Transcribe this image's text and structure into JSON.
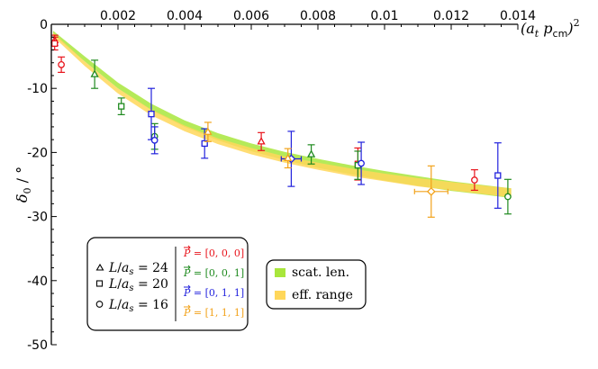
{
  "chart_data": {
    "type": "scatter",
    "title": "",
    "xlabel": "(a_t p_cm)^2",
    "ylabel": "δ0 / °",
    "xlim": [
      0,
      0.014
    ],
    "ylim": [
      -50,
      0
    ],
    "x_ticks": [
      0.002,
      0.004,
      0.006,
      0.008,
      0.01,
      0.012,
      0.014
    ],
    "x_tick_labels": [
      "0.002",
      "0.004",
      "0.006",
      "0.008",
      "0.01",
      "0.012",
      "0.014"
    ],
    "y_ticks": [
      0,
      -10,
      -20,
      -30,
      -40,
      -50
    ],
    "y_tick_labels": [
      "0",
      "-10",
      "-20",
      "-30",
      "-40",
      "-50"
    ],
    "x_axis_position": "top",
    "grid": false,
    "colors": {
      "frame_000": "#e8141c",
      "frame_001": "#1f8a1f",
      "frame_011": "#2222dd",
      "frame_111": "#f2a21a",
      "band_scat": "#a8e63c",
      "band_eff": "#ffd75a"
    },
    "bands": [
      {
        "name": "scat. len.",
        "x": [
          5e-05,
          0.001,
          0.002,
          0.003,
          0.004,
          0.005,
          0.006,
          0.007,
          0.008,
          0.009,
          0.01,
          0.011,
          0.012,
          0.013,
          0.0138
        ],
        "upper": [
          -1.0,
          -5.0,
          -9.1,
          -12.4,
          -15.0,
          -17.0,
          -18.6,
          -19.9,
          -21.0,
          -22.0,
          -22.9,
          -23.7,
          -24.5,
          -25.1,
          -25.6
        ],
        "lower": [
          -1.6,
          -5.8,
          -10.0,
          -13.4,
          -16.0,
          -18.1,
          -19.8,
          -21.2,
          -22.4,
          -23.4,
          -24.4,
          -25.2,
          -26.0,
          -26.6,
          -27.1
        ]
      },
      {
        "name": "eff. range",
        "x": [
          5e-05,
          0.001,
          0.002,
          0.003,
          0.004,
          0.005,
          0.006,
          0.007,
          0.008,
          0.009,
          0.01,
          0.011,
          0.012,
          0.013,
          0.0138
        ],
        "upper": [
          -1.3,
          -5.8,
          -10.0,
          -13.3,
          -15.8,
          -17.8,
          -19.3,
          -20.6,
          -21.6,
          -22.5,
          -23.3,
          -24.0,
          -24.6,
          -25.2,
          -25.6
        ],
        "lower": [
          -1.9,
          -6.5,
          -10.8,
          -14.2,
          -16.7,
          -18.7,
          -20.3,
          -21.6,
          -22.7,
          -23.7,
          -24.5,
          -25.3,
          -25.9,
          -26.5,
          -27.0
        ]
      }
    ],
    "series": [
      {
        "frame": "000",
        "marker": "triangle",
        "x": 0.0001,
        "y": -2.5,
        "yerr": 0.8,
        "xerr": 0
      },
      {
        "frame": "000",
        "marker": "square",
        "x": 0.0001,
        "y": -3.0,
        "yerr": 1.0,
        "xerr": 0
      },
      {
        "frame": "000",
        "marker": "circle",
        "x": 0.0003,
        "y": -6.3,
        "yerr": 1.2,
        "xerr": 0
      },
      {
        "frame": "000",
        "marker": "triangle",
        "x": 0.0063,
        "y": -18.3,
        "yerr": 1.4,
        "xerr": 0
      },
      {
        "frame": "000",
        "marker": "square",
        "x": 0.0092,
        "y": -21.8,
        "yerr": 2.5,
        "xerr": 0
      },
      {
        "frame": "000",
        "marker": "circle",
        "x": 0.0127,
        "y": -24.3,
        "yerr": 1.6,
        "xerr": 0
      },
      {
        "frame": "001",
        "marker": "triangle",
        "x": 0.0013,
        "y": -7.8,
        "yerr": 2.2,
        "xerr": 0
      },
      {
        "frame": "001",
        "marker": "square",
        "x": 0.0021,
        "y": -12.8,
        "yerr": 1.3,
        "xerr": 0
      },
      {
        "frame": "001",
        "marker": "circle",
        "x": 0.0031,
        "y": -17.5,
        "yerr": 2.0,
        "xerr": 0
      },
      {
        "frame": "001",
        "marker": "triangle",
        "x": 0.0078,
        "y": -20.3,
        "yerr": 1.5,
        "xerr": 0
      },
      {
        "frame": "001",
        "marker": "square",
        "x": 0.0092,
        "y": -22.0,
        "yerr": 2.2,
        "xerr": 0
      },
      {
        "frame": "001",
        "marker": "circle",
        "x": 0.0137,
        "y": -26.9,
        "yerr": 2.7,
        "xerr": 0
      },
      {
        "frame": "011",
        "marker": "square",
        "x": 0.003,
        "y": -14.0,
        "yerr": 4.0,
        "xerr": 0
      },
      {
        "frame": "011",
        "marker": "circle",
        "x": 0.0031,
        "y": -18.1,
        "yerr": 2.1,
        "xerr": 0
      },
      {
        "frame": "011",
        "marker": "square",
        "x": 0.0046,
        "y": -18.6,
        "yerr": 2.3,
        "xerr": 0
      },
      {
        "frame": "011",
        "marker": "diamond",
        "x": 0.0072,
        "y": -21.0,
        "yerr": 4.3,
        "xerr": 0.0003
      },
      {
        "frame": "011",
        "marker": "circle",
        "x": 0.0093,
        "y": -21.7,
        "yerr": 3.3,
        "xerr": 0
      },
      {
        "frame": "011",
        "marker": "square",
        "x": 0.0134,
        "y": -23.6,
        "yerr": 5.1,
        "xerr": 0
      },
      {
        "frame": "111",
        "marker": "triangle",
        "x": 0.0047,
        "y": -16.8,
        "yerr": 1.5,
        "xerr": 0
      },
      {
        "frame": "111",
        "marker": "triangle",
        "x": 0.0071,
        "y": -20.9,
        "yerr": 1.5,
        "xerr": 0
      },
      {
        "frame": "111",
        "marker": "diamond",
        "x": 0.0114,
        "y": -26.1,
        "yerr": 4.0,
        "xerr": 0.0005
      }
    ]
  },
  "legend_markers": {
    "entries": [
      {
        "marker": "triangle",
        "label": "L/a_s = 24"
      },
      {
        "marker": "square",
        "label": "L/a_s = 20"
      },
      {
        "marker": "circle",
        "label": "L/a_s = 16"
      }
    ],
    "frames": [
      {
        "label": "P = [0, 0, 0]",
        "color": "#e8141c"
      },
      {
        "label": "P = [0, 0, 1]",
        "color": "#1f8a1f"
      },
      {
        "label": "P = [0, 1, 1]",
        "color": "#2222dd"
      },
      {
        "label": "P = [1, 1, 1]",
        "color": "#f2a21a"
      }
    ]
  },
  "legend_bands": {
    "entries": [
      {
        "label": "scat. len.",
        "color": "#a8e63c"
      },
      {
        "label": "eff. range",
        "color": "#ffd75a"
      }
    ]
  }
}
